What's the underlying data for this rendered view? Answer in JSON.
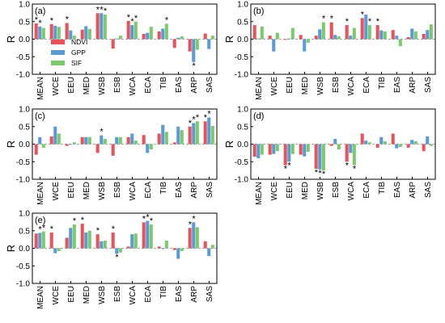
{
  "colors": {
    "NDVI": "#e8525a",
    "GPP": "#5b9bd5",
    "SIF": "#7cc96d"
  },
  "chart_data": [
    {
      "type": "bar",
      "panel_label": "(a)",
      "ylabel": "R",
      "ylim": [
        -1,
        1
      ],
      "yticks": [
        "-1.0",
        "-0.5",
        "0.0",
        "0.5",
        "1.0"
      ],
      "categories": [
        "MEAN",
        "WCE",
        "EEU",
        "MED",
        "WSB",
        "ESB",
        "WCA",
        "ECA",
        "TIB",
        "EAS",
        "ARP",
        "SAS"
      ],
      "series": [
        {
          "name": "NDVI",
          "values": [
            0.45,
            0.43,
            0.46,
            0.27,
            0.74,
            -0.27,
            0.52,
            0.15,
            0.22,
            -0.25,
            -0.35,
            0.16
          ]
        },
        {
          "name": "GPP",
          "values": [
            0.36,
            0.38,
            0.25,
            0.37,
            0.74,
            0.02,
            0.4,
            0.18,
            0.3,
            0.04,
            -0.65,
            -0.28
          ]
        },
        {
          "name": "SIF",
          "values": [
            0.32,
            0.35,
            0.1,
            0.29,
            0.7,
            0.1,
            0.5,
            0.35,
            0.44,
            0.08,
            -0.3,
            0.1
          ]
        }
      ],
      "significance": [
        [
          1,
          1,
          0
        ],
        [
          1,
          0,
          0
        ],
        [
          1,
          0,
          0
        ],
        [
          0,
          0,
          0
        ],
        [
          1,
          1,
          1
        ],
        [
          0,
          0,
          0
        ],
        [
          1,
          1,
          1
        ],
        [
          0,
          0,
          0
        ],
        [
          0,
          0,
          1
        ],
        [
          0,
          0,
          0
        ],
        [
          0,
          1,
          0
        ],
        [
          0,
          0,
          0
        ]
      ],
      "legend": [
        "NDVI",
        "GPP",
        "SIF"
      ],
      "legend_position": "left-center"
    },
    {
      "type": "bar",
      "panel_label": "(b)",
      "ylabel": "R",
      "ylim": [
        -1,
        1
      ],
      "yticks": [
        "-1.0",
        "-0.5",
        "0.0",
        "0.5",
        "1.0"
      ],
      "categories": [
        "MEAN",
        "WCE",
        "EEU",
        "MED",
        "WSB",
        "ESB",
        "WCA",
        "ECA",
        "TIB",
        "EAS",
        "ARP",
        "SAS"
      ],
      "series": [
        {
          "name": "NDVI",
          "values": [
            0.4,
            0.1,
            -0.02,
            0.12,
            0.1,
            0.48,
            0.4,
            0.6,
            0.4,
            0.26,
            0.06,
            0.15
          ]
        },
        {
          "name": "GPP",
          "values": [
            0.02,
            -0.35,
            0.02,
            -0.35,
            0.28,
            0.12,
            0.1,
            0.7,
            0.25,
            0.1,
            0.3,
            0.26
          ]
        },
        {
          "name": "SIF",
          "values": [
            0.36,
            0.18,
            0.32,
            -0.1,
            0.48,
            0.08,
            0.32,
            0.4,
            0.22,
            -0.2,
            0.22,
            0.42
          ]
        }
      ],
      "significance": [
        [
          0,
          0,
          0
        ],
        [
          0,
          0,
          0
        ],
        [
          0,
          0,
          0
        ],
        [
          0,
          0,
          0
        ],
        [
          0,
          0,
          1
        ],
        [
          1,
          0,
          0
        ],
        [
          1,
          0,
          0
        ],
        [
          1,
          0,
          1
        ],
        [
          1,
          0,
          0
        ],
        [
          0,
          0,
          0
        ],
        [
          0,
          0,
          0
        ],
        [
          0,
          0,
          0
        ]
      ]
    },
    {
      "type": "bar",
      "panel_label": "(c)",
      "ylabel": "R",
      "ylim": [
        -1,
        1
      ],
      "yticks": [
        "-1.0",
        "-0.5",
        "0.0",
        "0.5",
        "1.0"
      ],
      "categories": [
        "MEAN",
        "WCE",
        "EEU",
        "MED",
        "WSB",
        "ESB",
        "WCA",
        "ECA",
        "TIB",
        "EAS",
        "ARP",
        "SAS"
      ],
      "series": [
        {
          "name": "NDVI",
          "values": [
            -0.3,
            0.22,
            -0.05,
            0.2,
            -0.25,
            -0.33,
            0.2,
            0.26,
            0.3,
            0.05,
            0.5,
            0.65
          ]
        },
        {
          "name": "GPP",
          "values": [
            0.2,
            0.5,
            -0.02,
            0.2,
            0.25,
            0.2,
            0.3,
            -0.25,
            0.55,
            0.5,
            0.6,
            0.76
          ]
        },
        {
          "name": "SIF",
          "values": [
            -0.1,
            0.3,
            0.05,
            0.2,
            0.15,
            0.2,
            0.1,
            -0.15,
            0.35,
            0.4,
            0.65,
            0.52
          ]
        }
      ],
      "significance": [
        [
          0,
          0,
          0
        ],
        [
          0,
          0,
          0
        ],
        [
          0,
          0,
          0
        ],
        [
          0,
          0,
          0
        ],
        [
          0,
          1,
          0
        ],
        [
          0,
          0,
          0
        ],
        [
          0,
          0,
          0
        ],
        [
          0,
          0,
          0
        ],
        [
          0,
          0,
          0
        ],
        [
          0,
          0,
          0
        ],
        [
          1,
          1,
          1
        ],
        [
          1,
          1,
          0
        ]
      ]
    },
    {
      "type": "bar",
      "panel_label": "(d)",
      "ylabel": "R",
      "ylim": [
        -1,
        1
      ],
      "yticks": [
        "-1.0",
        "-0.5",
        "0.0",
        "0.5",
        "1.0"
      ],
      "categories": [
        "MEAN",
        "WCE",
        "EEU",
        "MED",
        "WSB",
        "ESB",
        "WCA",
        "ECA",
        "TIB",
        "EAS",
        "ARP",
        "SAS"
      ],
      "series": [
        {
          "name": "NDVI",
          "values": [
            -0.36,
            -0.3,
            -0.6,
            -0.3,
            -0.7,
            -0.05,
            -0.5,
            0.3,
            -0.1,
            0.3,
            -0.1,
            -0.2
          ]
        },
        {
          "name": "GPP",
          "values": [
            -0.4,
            -0.28,
            -0.5,
            -0.35,
            -0.72,
            0.15,
            -0.25,
            0.1,
            0.2,
            -0.12,
            0.12,
            0.22
          ]
        },
        {
          "name": "SIF",
          "values": [
            -0.3,
            -0.2,
            -0.28,
            -0.22,
            -0.75,
            -0.15,
            -0.6,
            0.05,
            0.08,
            -0.08,
            0.08,
            -0.05
          ]
        }
      ],
      "significance": [
        [
          0,
          0,
          0
        ],
        [
          0,
          0,
          0
        ],
        [
          1,
          1,
          0
        ],
        [
          0,
          0,
          0
        ],
        [
          1,
          1,
          1
        ],
        [
          0,
          0,
          0
        ],
        [
          1,
          0,
          1
        ],
        [
          0,
          0,
          0
        ],
        [
          0,
          0,
          0
        ],
        [
          0,
          0,
          0
        ],
        [
          0,
          0,
          0
        ],
        [
          0,
          0,
          0
        ]
      ]
    },
    {
      "type": "bar",
      "panel_label": "(e)",
      "ylabel": "R",
      "ylim": [
        -1,
        1
      ],
      "yticks": [
        "-1.0",
        "-0.5",
        "0.0",
        "0.5",
        "1.0"
      ],
      "categories": [
        "MEAN",
        "WCE",
        "EEU",
        "MED",
        "WSB",
        "ESB",
        "WCA",
        "ECA",
        "TIB",
        "EAS",
        "ARP",
        "SAS"
      ],
      "series": [
        {
          "name": "NDVI",
          "values": [
            0.42,
            0.45,
            0.3,
            0.7,
            0.4,
            0.45,
            0.05,
            0.74,
            0.05,
            -0.05,
            0.58,
            0.2
          ]
        },
        {
          "name": "GPP",
          "values": [
            0.44,
            -0.14,
            0.58,
            0.45,
            0.2,
            -0.15,
            0.4,
            0.78,
            -0.02,
            -0.3,
            0.74,
            -0.22
          ]
        },
        {
          "name": "SIF",
          "values": [
            0.48,
            -0.08,
            0.68,
            0.5,
            0.22,
            -0.12,
            0.42,
            0.68,
            0.22,
            -0.08,
            0.6,
            0.1
          ]
        }
      ],
      "significance": [
        [
          0,
          1,
          1
        ],
        [
          1,
          0,
          0
        ],
        [
          0,
          0,
          1
        ],
        [
          1,
          0,
          0
        ],
        [
          1,
          0,
          0
        ],
        [
          1,
          1,
          0
        ],
        [
          0,
          0,
          0
        ],
        [
          1,
          1,
          1
        ],
        [
          0,
          0,
          0
        ],
        [
          0,
          0,
          0
        ],
        [
          1,
          1,
          0
        ],
        [
          0,
          0,
          0
        ]
      ]
    }
  ]
}
